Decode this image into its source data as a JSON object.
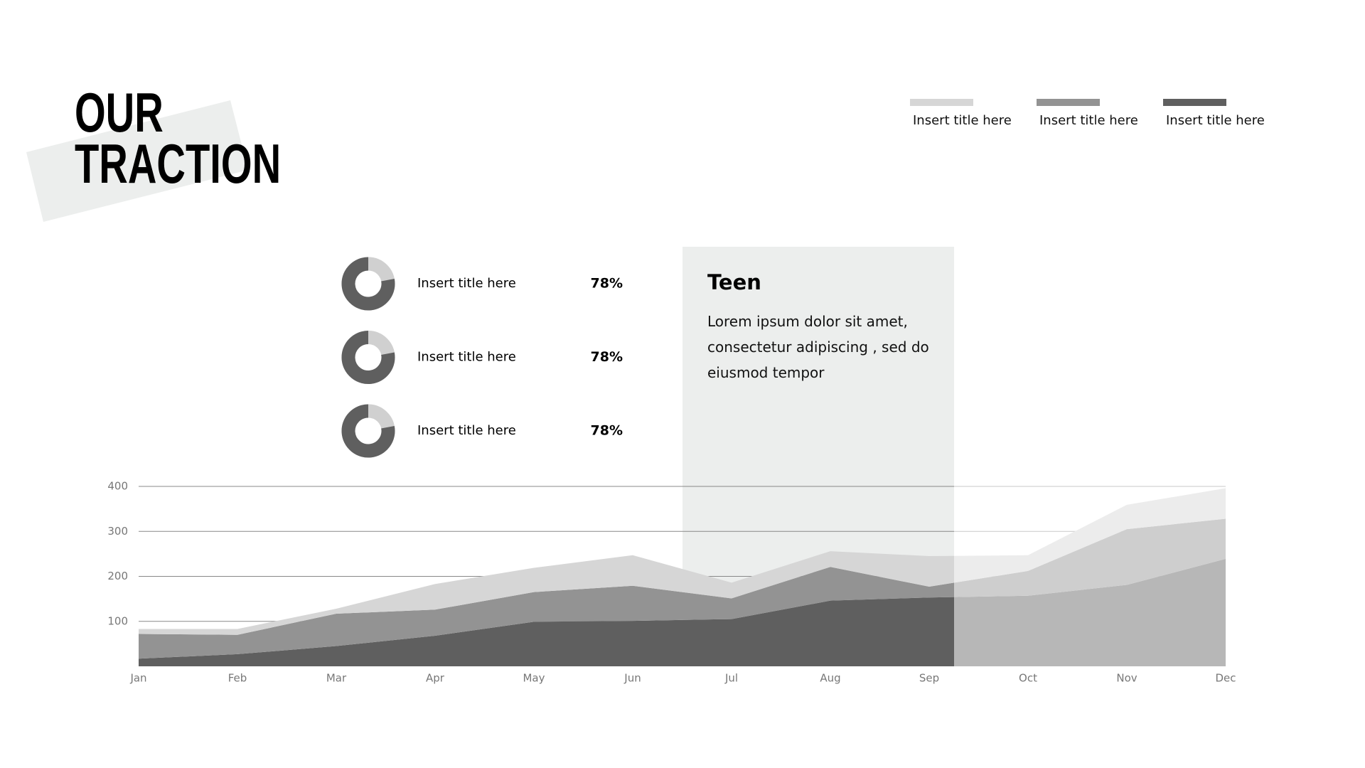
{
  "title_lines": [
    "OUR",
    "TRACTION"
  ],
  "stats": [
    {
      "label": "Insert title here",
      "value": 78,
      "value_label": "78%"
    },
    {
      "label": "Insert title here",
      "value": 78,
      "value_label": "78%"
    },
    {
      "label": "Insert title here",
      "value": 78,
      "value_label": "78%"
    }
  ],
  "card": {
    "title": "Teen",
    "text": "Lorem ipsum dolor sit amet, consectetur adipiscing , sed do eiusmod tempor"
  },
  "chart_data": {
    "type": "stacked-area",
    "categories": [
      "Jan",
      "Feb",
      "Mar",
      "Apr",
      "May",
      "Jun",
      "Jul",
      "Aug",
      "Sep",
      "Oct",
      "Nov",
      "Dec"
    ],
    "series": [
      {
        "name": "Insert title here",
        "color": "#d6d6d6",
        "values": [
          11,
          13,
          11,
          57,
          54,
          68,
          35,
          35,
          68,
          35,
          54,
          68
        ]
      },
      {
        "name": "Insert title here",
        "color": "#939393",
        "values": [
          55,
          43,
          72,
          58,
          66,
          78,
          46,
          75,
          24,
          55,
          124,
          89
        ]
      },
      {
        "name": "Insert title here",
        "color": "#5f5f5f",
        "values": [
          17,
          27,
          45,
          68,
          99,
          101,
          105,
          146,
          153,
          157,
          181,
          239
        ]
      }
    ],
    "ylim": [
      0,
      400
    ],
    "yticks": [
      100,
      200,
      300,
      400
    ],
    "grid": true
  }
}
